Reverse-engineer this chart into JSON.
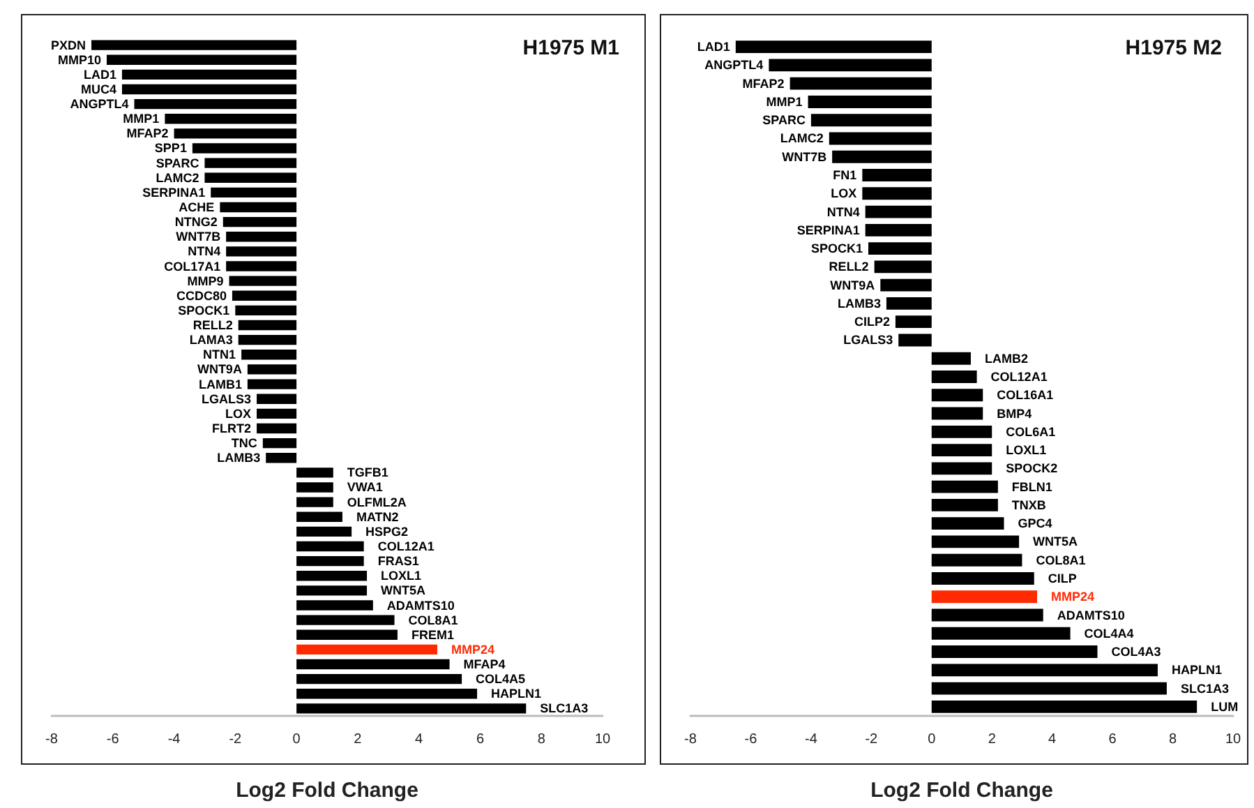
{
  "chart_data": [
    {
      "type": "bar",
      "orientation": "horizontal",
      "title": "H1975 M1",
      "xlabel": "Log2 Fold Change",
      "categories": [
        "PXDN",
        "MMP10",
        "LAD1",
        "MUC4",
        "ANGPTL4",
        "MMP1",
        "MFAP2",
        "SPP1",
        "SPARC",
        "LAMC2",
        "SERPINA1",
        "ACHE",
        "NTNG2",
        "WNT7B",
        "NTN4",
        "COL17A1",
        "MMP9",
        "CCDC80",
        "SPOCK1",
        "RELL2",
        "LAMA3",
        "NTN1",
        "WNT9A",
        "LAMB1",
        "LGALS3",
        "LOX",
        "FLRT2",
        "TNC",
        "LAMB3",
        "TGFB1",
        "VWA1",
        "OLFML2A",
        "MATN2",
        "HSPG2",
        "COL12A1",
        "FRAS1",
        "LOXL1",
        "WNT5A",
        "ADAMTS10",
        "COL8A1",
        "FREM1",
        "MMP24",
        "MFAP4",
        "COL4A5",
        "HAPLN1",
        "SLC1A3"
      ],
      "values": [
        -6.7,
        -6.2,
        -5.7,
        -5.7,
        -5.3,
        -4.3,
        -4.0,
        -3.4,
        -3.0,
        -3.0,
        -2.8,
        -2.5,
        -2.4,
        -2.3,
        -2.3,
        -2.3,
        -2.2,
        -2.1,
        -2.0,
        -1.9,
        -1.9,
        -1.8,
        -1.6,
        -1.6,
        -1.3,
        -1.3,
        -1.3,
        -1.1,
        -1.0,
        1.2,
        1.2,
        1.2,
        1.5,
        1.8,
        2.2,
        2.2,
        2.3,
        2.3,
        2.5,
        3.2,
        3.3,
        4.6,
        5.0,
        5.4,
        5.9,
        7.5
      ],
      "colors": [
        "#000000",
        "#000000",
        "#000000",
        "#000000",
        "#000000",
        "#000000",
        "#000000",
        "#000000",
        "#000000",
        "#000000",
        "#000000",
        "#000000",
        "#000000",
        "#000000",
        "#000000",
        "#000000",
        "#000000",
        "#000000",
        "#000000",
        "#000000",
        "#000000",
        "#000000",
        "#000000",
        "#000000",
        "#000000",
        "#000000",
        "#000000",
        "#000000",
        "#000000",
        "#000000",
        "#000000",
        "#000000",
        "#000000",
        "#000000",
        "#000000",
        "#000000",
        "#000000",
        "#000000",
        "#000000",
        "#000000",
        "#000000",
        "#ff2a00",
        "#000000",
        "#000000",
        "#000000",
        "#000000"
      ],
      "xlim": [
        -8,
        10
      ],
      "xticks": [
        -8,
        -6,
        -4,
        -2,
        0,
        2,
        4,
        6,
        8,
        10
      ]
    },
    {
      "type": "bar",
      "orientation": "horizontal",
      "title": "H1975 M2",
      "xlabel": "Log2 Fold Change",
      "categories": [
        "LAD1",
        "ANGPTL4",
        "MFAP2",
        "MMP1",
        "SPARC",
        "LAMC2",
        "WNT7B",
        "FN1",
        "LOX",
        "NTN4",
        "SERPINA1",
        "SPOCK1",
        "RELL2",
        "WNT9A",
        "LAMB3",
        "CILP2",
        "LGALS3",
        "LAMB2",
        "COL12A1",
        "COL16A1",
        "BMP4",
        "COL6A1",
        "LOXL1",
        "SPOCK2",
        "FBLN1",
        "TNXB",
        "GPC4",
        "WNT5A",
        "COL8A1",
        "CILP",
        "MMP24",
        "ADAMTS10",
        "COL4A4",
        "COL4A3",
        "HAPLN1",
        "SLC1A3",
        "LUM"
      ],
      "values": [
        -6.5,
        -5.4,
        -4.7,
        -4.1,
        -4.0,
        -3.4,
        -3.3,
        -2.3,
        -2.3,
        -2.2,
        -2.2,
        -2.1,
        -1.9,
        -1.7,
        -1.5,
        -1.2,
        -1.1,
        1.3,
        1.5,
        1.7,
        1.7,
        2.0,
        2.0,
        2.0,
        2.2,
        2.2,
        2.4,
        2.9,
        3.0,
        3.4,
        3.5,
        3.7,
        4.6,
        5.5,
        7.5,
        7.8,
        8.8
      ],
      "colors": [
        "#000000",
        "#000000",
        "#000000",
        "#000000",
        "#000000",
        "#000000",
        "#000000",
        "#000000",
        "#000000",
        "#000000",
        "#000000",
        "#000000",
        "#000000",
        "#000000",
        "#000000",
        "#000000",
        "#000000",
        "#000000",
        "#000000",
        "#000000",
        "#000000",
        "#000000",
        "#000000",
        "#000000",
        "#000000",
        "#000000",
        "#000000",
        "#000000",
        "#000000",
        "#000000",
        "#ff2a00",
        "#000000",
        "#000000",
        "#000000",
        "#000000",
        "#000000",
        "#000000"
      ],
      "xlim": [
        -8,
        10
      ],
      "xticks": [
        -8,
        -6,
        -4,
        -2,
        0,
        2,
        4,
        6,
        8,
        10
      ]
    }
  ]
}
